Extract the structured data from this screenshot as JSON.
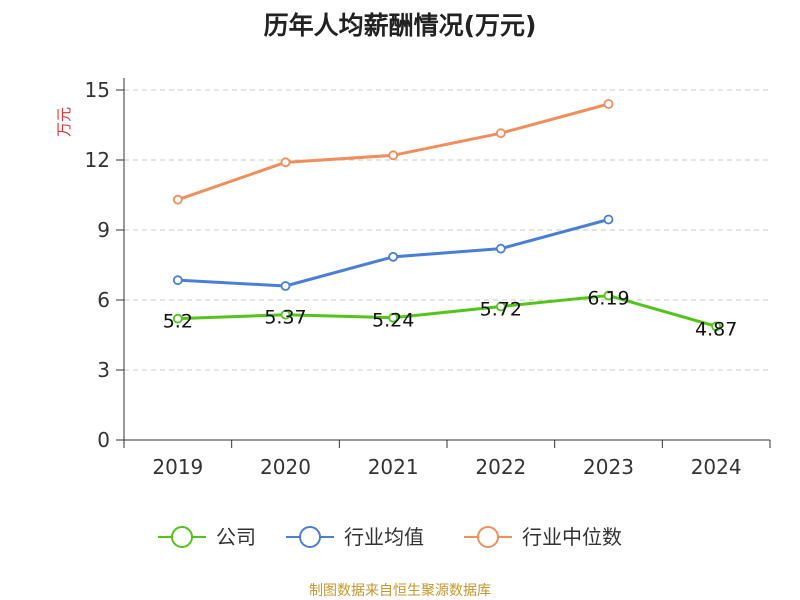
{
  "chart_data": {
    "type": "line",
    "title": "历年人均薪酬情况(万元)",
    "ylabel": "万元",
    "xlabel": "",
    "ylim": [
      0,
      15
    ],
    "yticks": [
      0,
      3,
      6,
      9,
      12,
      15
    ],
    "categories": [
      "2019",
      "2020",
      "2021",
      "2022",
      "2023",
      "2024"
    ],
    "grid": "horizontal dashed",
    "legend_position": "bottom",
    "series": [
      {
        "name": "公司",
        "color": "#52c41a",
        "values": [
          5.2,
          5.37,
          5.24,
          5.72,
          6.19,
          4.87
        ],
        "labels": [
          "5.2",
          "5.37",
          "5.24",
          "5.72",
          "6.19",
          "4.87"
        ]
      },
      {
        "name": "行业均值",
        "color": "#4a7fd8",
        "values": [
          6.85,
          6.6,
          7.85,
          8.2,
          9.45,
          null
        ]
      },
      {
        "name": "行业中位数",
        "color": "#f28e5b",
        "values": [
          10.3,
          11.9,
          12.2,
          13.15,
          14.4,
          null
        ]
      }
    ]
  },
  "footer": {
    "source": "制图数据来自恒生聚源数据库"
  }
}
